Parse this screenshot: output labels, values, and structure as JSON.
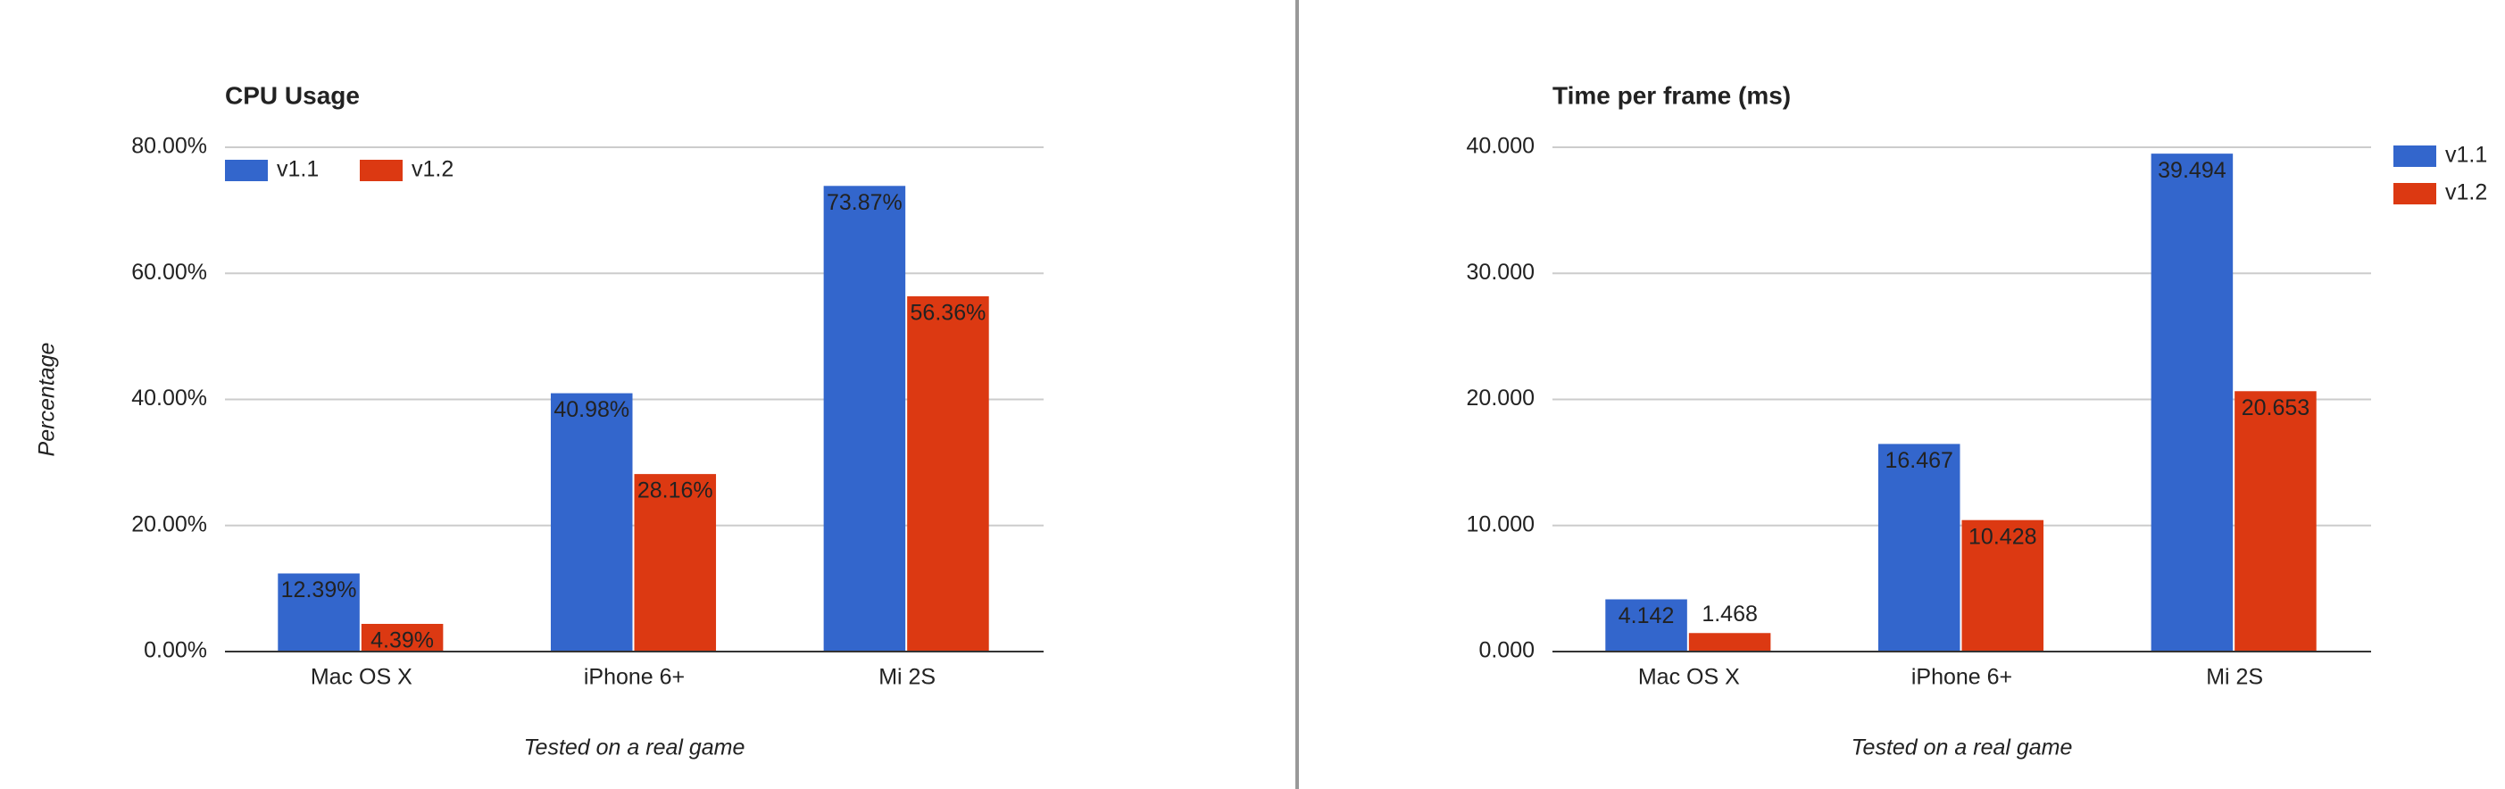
{
  "chart_data": [
    {
      "type": "bar",
      "title": "CPU Usage",
      "y_label": "Percentage",
      "x_label": "Tested on a real game",
      "categories": [
        "Mac OS X",
        "iPhone 6+",
        "Mi 2S"
      ],
      "series": [
        {
          "name": "v1.1",
          "color": "#3366cc",
          "values": [
            12.39,
            40.98,
            73.87
          ],
          "value_labels": [
            "12.39%",
            "40.98%",
            "73.87%"
          ]
        },
        {
          "name": "v1.2",
          "color": "#dc3912",
          "values": [
            4.39,
            28.16,
            56.36
          ],
          "value_labels": [
            "4.39%",
            "28.16%",
            "56.36%"
          ]
        }
      ],
      "ylim": [
        0,
        80
      ],
      "yticks": [
        {
          "value": 0,
          "label": "0.00%"
        },
        {
          "value": 20,
          "label": "20.00%"
        },
        {
          "value": 40,
          "label": "40.00%"
        },
        {
          "value": 60,
          "label": "60.00%"
        },
        {
          "value": 80,
          "label": "80.00%"
        }
      ],
      "grid": true,
      "legend": "top-left"
    },
    {
      "type": "bar",
      "title": "Time per frame (ms)",
      "x_label": "Tested on a real game",
      "categories": [
        "Mac OS X",
        "iPhone 6+",
        "Mi 2S"
      ],
      "series": [
        {
          "name": "v1.1",
          "color": "#3366cc",
          "values": [
            4.142,
            16.467,
            39.494
          ]
        },
        {
          "name": "v1.2",
          "color": "#dc3912",
          "values": [
            1.468,
            10.428,
            20.653
          ]
        }
      ],
      "ylim": [
        0,
        40
      ],
      "yticks": [
        {
          "value": 0,
          "label": "0.000"
        },
        {
          "value": 10,
          "label": "10.000"
        },
        {
          "value": 20,
          "label": "20.000"
        },
        {
          "value": 30,
          "label": "30.000"
        },
        {
          "value": 40,
          "label": "40.000"
        }
      ],
      "grid": true,
      "legend": "right"
    }
  ]
}
